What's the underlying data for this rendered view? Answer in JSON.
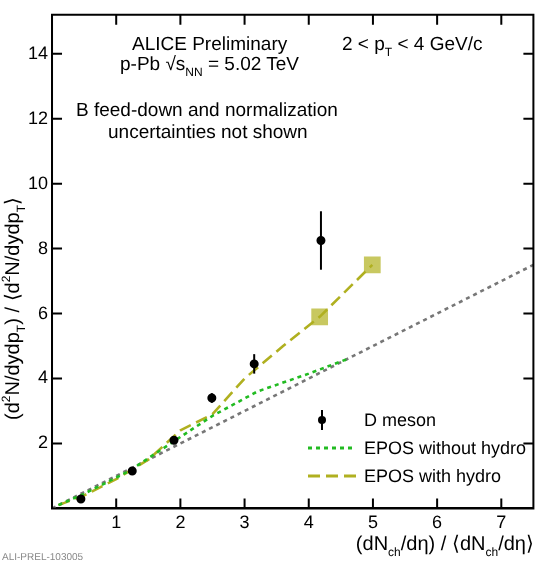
{
  "chart_data": {
    "type": "scatter",
    "xlabel": "(dN$_{ch}$/dη) / ⟨dN$_{ch}$/dη⟩",
    "ylabel": "(d$^{2}$N/dydp$_{T}$) / ⟨d$^{2}$N/dydp$_{T}$⟩",
    "xlim": [
      0,
      7.5
    ],
    "ylim": [
      0,
      15.2
    ],
    "xticks": [
      1,
      2,
      3,
      4,
      5,
      6,
      7
    ],
    "yticks": [
      2,
      4,
      6,
      8,
      10,
      12,
      14
    ],
    "grid": false,
    "legend": "bottom right",
    "series": [
      {
        "name": "D meson",
        "color": "#000000",
        "marker": "circle",
        "x": [
          0.45,
          1.25,
          1.9,
          2.49,
          3.15,
          4.19
        ],
        "values": [
          0.29,
          1.15,
          2.1,
          3.4,
          4.45,
          8.25
        ],
        "errors": [
          0.1,
          0.12,
          0.12,
          0.15,
          0.3,
          0.9
        ]
      },
      {
        "name": "EPOS without hydro",
        "type": "line",
        "color": "#22bb22",
        "marker": "none",
        "line_style": "dotted",
        "x": [
          0.1,
          0.5,
          1.2,
          2,
          2.5,
          3.2,
          4,
          4.6
        ],
        "values": [
          0.1,
          0.45,
          1.15,
          2.2,
          2.85,
          3.6,
          4.15,
          4.6
        ]
      },
      {
        "name": "EPOS with hydro",
        "type": "line",
        "color": "#b0b020",
        "marker": "none",
        "line_style": "dashed",
        "x": [
          0.1,
          0.5,
          1,
          1.5,
          2,
          2.5,
          3,
          3.6,
          4.17,
          4.99
        ],
        "values": [
          0.1,
          0.4,
          0.9,
          1.5,
          2.4,
          2.9,
          4.0,
          5.0,
          5.9,
          7.5
        ]
      },
      {
        "color": "#c8c860",
        "marker": "square",
        "x": [
          4.17,
          4.99
        ],
        "values": [
          5.9,
          7.5
        ]
      },
      {
        "type": "line",
        "color": "#777777",
        "marker": "none",
        "line_style": "dotted",
        "x": [
          0,
          7.5
        ],
        "values": [
          0,
          7.5
        ]
      }
    ],
    "annotations": [
      "ALICE Preliminary",
      "p-Pb √s$_{NN}$ = 5.02 TeV",
      "2 < p$_{T}$ < 4 GeV/c",
      "B feed-down and normalization",
      "uncertainties not shown",
      "ALI-PREL-103005"
    ]
  }
}
